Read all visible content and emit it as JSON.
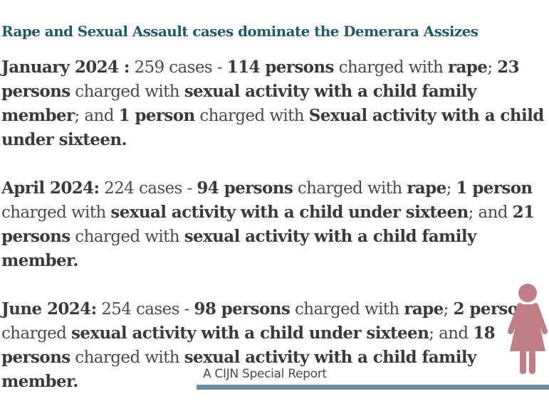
{
  "title": "Rape and Sexual Assault cases dominate the Demerara Assizes",
  "p1": {
    "date": "January 2024 :",
    "cases": " 259 cases - ",
    "n1": "114 persons",
    "t1": " charged with ",
    "c1": "rape",
    "sep1": "; ",
    "n2": "23 persons",
    "t2": " charged with ",
    "c2": "sexual activity with a child family member",
    "sep2": "; and ",
    "n3": "1 person",
    "t3": " charged with ",
    "c3": "Sexual activity with a child under sixteen."
  },
  "p2": {
    "date": "April 2024:",
    "cases": " 224 cases - ",
    "n1": "94 persons",
    "t1": " charged with ",
    "c1": "rape",
    "sep1": "; ",
    "n2": "1 person",
    "t2": " charged with ",
    "c2": "sexual activity with a child under sixteen",
    "sep2": "; and ",
    "n3": "21 persons",
    "t3": " charged with ",
    "c3": "sexual activity with a child family member."
  },
  "p3": {
    "date": "June 2024:",
    "cases": " 254 cases - ",
    "n1": "98 persons",
    "t1": " charged with ",
    "c1": "rape",
    "sep1": "; ",
    "n2": "2 persons",
    "t2": " charged  ",
    "c2": "sexual activity with a child under sixteen",
    "sep2": "; and ",
    "n3": "18 persons",
    "t3": " charged with ",
    "c3": "sexual activity with a child family member."
  },
  "footer": {
    "label": "A CIJN Special Report"
  },
  "colors": {
    "title": "#1f5a68",
    "bar": "#6e8ea0",
    "figure": "#c07e86"
  },
  "icons": {
    "figure": "woman-figure-icon"
  }
}
